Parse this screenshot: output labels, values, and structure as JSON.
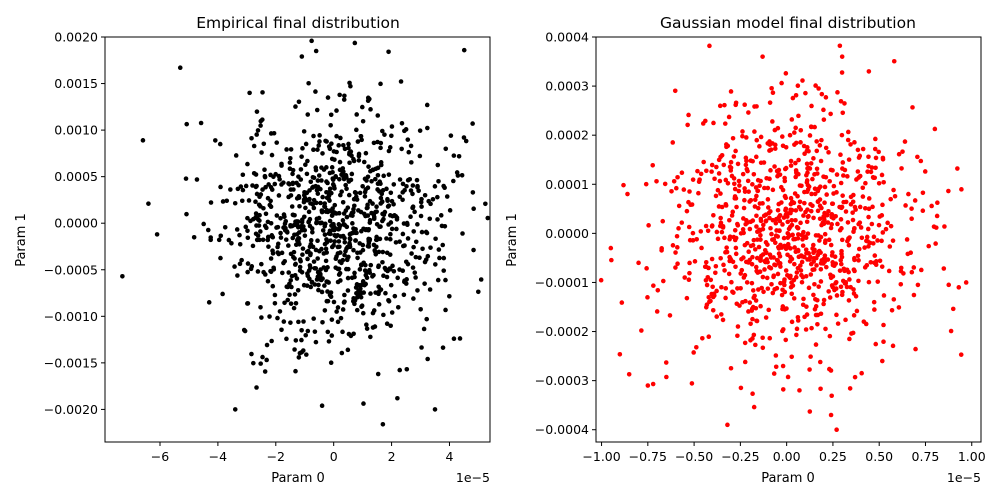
{
  "chart_data": [
    {
      "type": "scatter",
      "title": "Empirical final distribution",
      "xlabel": "Param 0",
      "ylabel": "Param 1",
      "x_offset_label": "1e−5",
      "xlim": [
        -7.9,
        5.4
      ],
      "ylim": [
        -0.00235,
        0.002
      ],
      "xticks": [
        -6,
        -4,
        -2,
        0,
        2,
        4
      ],
      "xtick_labels": [
        "−6",
        "−4",
        "−2",
        "0",
        "2",
        "4"
      ],
      "yticks": [
        -0.002,
        -0.0015,
        -0.001,
        -0.0005,
        0.0,
        0.0005,
        0.001,
        0.0015,
        0.002
      ],
      "ytick_labels": [
        "−0.0020",
        "−0.0015",
        "−0.0010",
        "−0.0005",
        "0.0000",
        "0.0005",
        "0.0010",
        "0.0015",
        "0.0020"
      ],
      "grid": false,
      "marker_color": "#000000",
      "n_points": 1000,
      "seed": 11,
      "x_std": 1.9,
      "y_std": 0.00062,
      "highlight_points": [
        [
          -7.3,
          -0.00057
        ],
        [
          -5.3,
          0.00167
        ],
        [
          -6.4,
          0.00021
        ],
        [
          -6.1,
          -0.00012
        ],
        [
          -3.4,
          -0.002
        ],
        [
          3.5,
          -0.002
        ],
        [
          1.7,
          -0.00216
        ],
        [
          -0.4,
          -0.00196
        ],
        [
          -1.1,
          0.00179
        ],
        [
          4.8,
          0.00107
        ],
        [
          4.5,
          0.00092
        ],
        [
          2.2,
          -0.00188
        ],
        [
          -4.3,
          -0.00085
        ]
      ]
    },
    {
      "type": "scatter",
      "title": "Gaussian model final distribution",
      "xlabel": "Param 0",
      "ylabel": "Param 1",
      "x_offset_label": "1e−5",
      "xlim": [
        -1.03,
        1.05
      ],
      "ylim": [
        -0.000425,
        0.0004
      ],
      "xticks": [
        -1.0,
        -0.75,
        -0.5,
        -0.25,
        0.0,
        0.25,
        0.5,
        0.75,
        1.0
      ],
      "xtick_labels": [
        "−1.00",
        "−0.75",
        "−0.50",
        "−0.25",
        "0.00",
        "0.25",
        "0.50",
        "0.75",
        "1.00"
      ],
      "yticks": [
        -0.0004,
        -0.0003,
        -0.0002,
        -0.0001,
        0.0,
        0.0001,
        0.0002,
        0.0003,
        0.0004
      ],
      "ytick_labels": [
        "−0.0004",
        "−0.0003",
        "−0.0002",
        "−0.0001",
        "0.0000",
        "0.0001",
        "0.0002",
        "0.0003",
        "0.0004"
      ],
      "grid": false,
      "marker_color": "#ff0000",
      "n_points": 1000,
      "seed": 23,
      "x_std": 0.33,
      "y_std": 0.000128,
      "highlight_points": [
        [
          -0.95,
          -3e-05
        ],
        [
          0.97,
          -0.0001
        ],
        [
          0.93,
          -0.00011
        ],
        [
          -0.13,
          0.00036
        ],
        [
          0.3,
          0.00036
        ],
        [
          0.27,
          -0.0004
        ],
        [
          0.24,
          -0.00037
        ],
        [
          -0.32,
          -0.00039
        ],
        [
          -0.75,
          -0.00031
        ],
        [
          -0.8,
          -6e-05
        ]
      ]
    }
  ]
}
